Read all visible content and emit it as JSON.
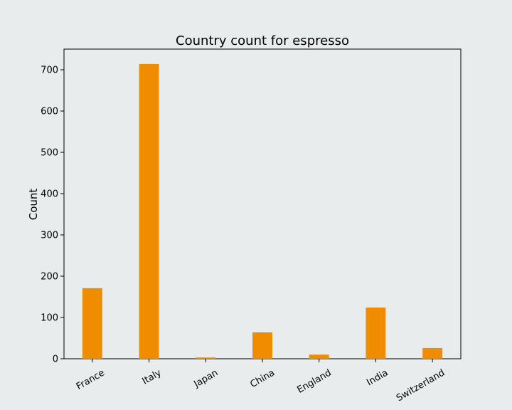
{
  "chart_data": {
    "type": "bar",
    "title": "Country count for espresso",
    "xlabel": "",
    "ylabel": "Count",
    "categories": [
      "France",
      "Italy",
      "Japan",
      "China",
      "England",
      "India",
      "Switzerland"
    ],
    "values": [
      171,
      714,
      3,
      64,
      10,
      124,
      26
    ],
    "ylim": [
      0,
      750
    ],
    "yticks": [
      0,
      100,
      200,
      300,
      400,
      500,
      600,
      700
    ],
    "grid": false,
    "legend": "none",
    "colors": {
      "bar": "#f08c00",
      "background": "#e8ecec",
      "axes": "#000000"
    }
  }
}
